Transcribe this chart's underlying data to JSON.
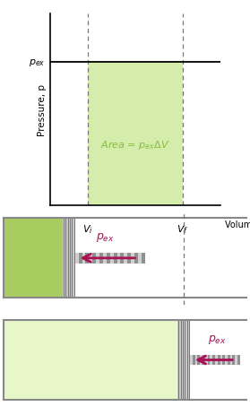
{
  "bg_color": "#ffffff",
  "light_green": "#d4edaa",
  "mid_green": "#a8cc60",
  "light_green2": "#e8f7c8",
  "gray_piston": "#a8a8a8",
  "gray_dark": "#808080",
  "arrow_color": "#aa1155",
  "text_green": "#88bb44",
  "axis_color": "#000000",
  "dashed_color": "#777777",
  "ylabel": "Pressure, p",
  "xlabel": "Volume, V",
  "pex_label": "$p_{ex}$",
  "area_label": "Area = $p_{ex}\\Delta V$",
  "vi_label": "$V_i$",
  "vf_label": "$V_f$"
}
